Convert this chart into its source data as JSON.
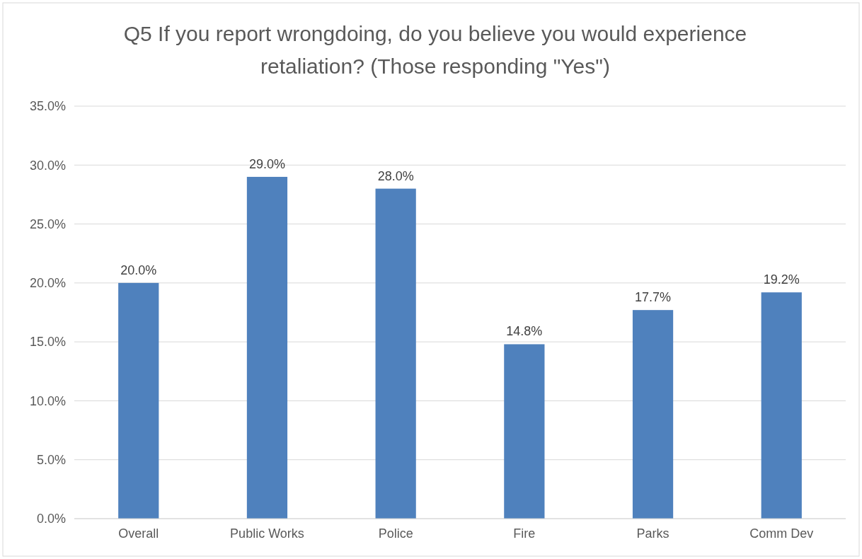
{
  "chart_data": {
    "type": "bar",
    "title": "Q5 If you report wrongdoing, do you believe you would experience retaliation? (Those responding \"Yes\")",
    "categories": [
      "Overall",
      "Public Works",
      "Police",
      "Fire",
      "Parks",
      "Comm Dev"
    ],
    "values": [
      20.0,
      29.0,
      28.0,
      14.8,
      17.7,
      19.2
    ],
    "value_labels": [
      "20.0%",
      "29.0%",
      "28.0%",
      "14.8%",
      "17.7%",
      "19.2%"
    ],
    "color": "#4f81bd",
    "ylim": [
      0,
      35
    ],
    "yticks": [
      {
        "value": 0,
        "label": "0.0%"
      },
      {
        "value": 5,
        "label": "5.0%"
      },
      {
        "value": 10,
        "label": "10.0%"
      },
      {
        "value": 15,
        "label": "15.0%"
      },
      {
        "value": 20,
        "label": "20.0%"
      },
      {
        "value": 25,
        "label": "25.0%"
      },
      {
        "value": 30,
        "label": "30.0%"
      },
      {
        "value": 35,
        "label": "35.0%"
      }
    ],
    "grid": "y"
  }
}
